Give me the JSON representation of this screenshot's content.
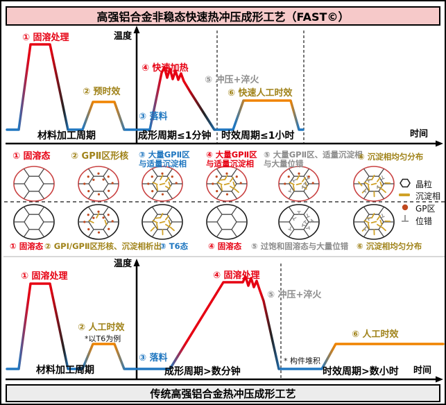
{
  "banners": {
    "fast": "高强铝合金非稳态快速热冲压成形工艺（FAST©）",
    "traditional": "传统高强铝合金热冲压成形工艺"
  },
  "axes": {
    "temperature": "温度",
    "time": "时间"
  },
  "fast_panel": {
    "step1": "① 固溶处理",
    "step2": "② 预时效",
    "step3": "③ 落料",
    "step4": "④ 快速加热",
    "step5": "⑤ 冲压+淬火",
    "step6": "⑥ 快速人工时效",
    "phase_material": "材料加工周期",
    "phase_forming": "成形周期≤1分钟",
    "phase_aging": "时效周期≤1小时"
  },
  "traditional_panel": {
    "step1": "① 固溶处理",
    "step2": "② 人工时效",
    "step2_note": "*以T6为例",
    "step3": "③ 落料",
    "step4": "④ 固溶处理",
    "step5": "⑤ 冲压+淬火",
    "step5_note": "* 构件堆积",
    "step6": "⑥ 人工时效",
    "phase_material": "材料加工周期",
    "phase_forming": "成形周期>数分钟",
    "phase_aging": "时效周期>数小时"
  },
  "microstructure": {
    "fast_row_labels": [
      "① 固溶态",
      "② GPⅡ区形核",
      "③ 大量GPⅡ区\n与适量沉淀相",
      "④ 大量GPⅡ区\n与适量沉淀相",
      "⑤ 大量GPⅡ区、适量沉淀相\n与大量位错",
      "⑥ 沉淀相均匀分布"
    ],
    "traditional_row_labels": [
      "① 固溶态",
      "② GPⅠ/GPⅡ区形核、沉淀相析出",
      "③ T6态",
      "④ 固溶态",
      "⑤ 过饱和固溶态与大量位错",
      "⑥ 沉淀相均匀分布"
    ],
    "fast_row_circles": [
      {
        "gp": 0,
        "precip": 0,
        "disloc": 0
      },
      {
        "gp": 10,
        "precip": 0,
        "disloc": 0
      },
      {
        "gp": 7,
        "precip": 7,
        "disloc": 0
      },
      {
        "gp": 7,
        "precip": 9,
        "disloc": 0
      },
      {
        "gp": 5,
        "precip": 7,
        "disloc": 5
      },
      {
        "gp": 0,
        "precip": 13,
        "disloc": 4
      }
    ],
    "traditional_row_circles": [
      {
        "gp": 0,
        "precip": 0,
        "disloc": 0
      },
      {
        "gp": 10,
        "precip": 3,
        "disloc": 0
      },
      {
        "gp": 0,
        "precip": 11,
        "disloc": 0
      },
      {
        "gp": 0,
        "precip": 0,
        "disloc": 0
      },
      {
        "gp": 0,
        "precip": 0,
        "disloc": 8
      },
      {
        "gp": 0,
        "precip": 12,
        "disloc": 3
      }
    ],
    "legend": [
      {
        "icon": "grain-hexagon-icon",
        "label": "晶粒"
      },
      {
        "icon": "precipitate-bar-icon",
        "label": "沉淀相"
      },
      {
        "icon": "gp-zone-dot-icon",
        "label": "GP区"
      },
      {
        "icon": "dislocation-icon",
        "label": "位错"
      }
    ]
  },
  "colors": {
    "red": "#e60012",
    "orange": "#f08300",
    "gold": "#a0831a",
    "blue": "#2077c0",
    "gray": "#8c8c8c",
    "dark": "#222222",
    "precipitate": "#cfa127",
    "gp_dot": "#c0491f",
    "grain_line": "#4a4a4a",
    "fast_circle_stroke": "#c94040",
    "trad_circle_stroke": "#1a1a1a",
    "banner_fast_bg": "#f6c9c9",
    "banner_traditional_bg": "#ececec"
  }
}
